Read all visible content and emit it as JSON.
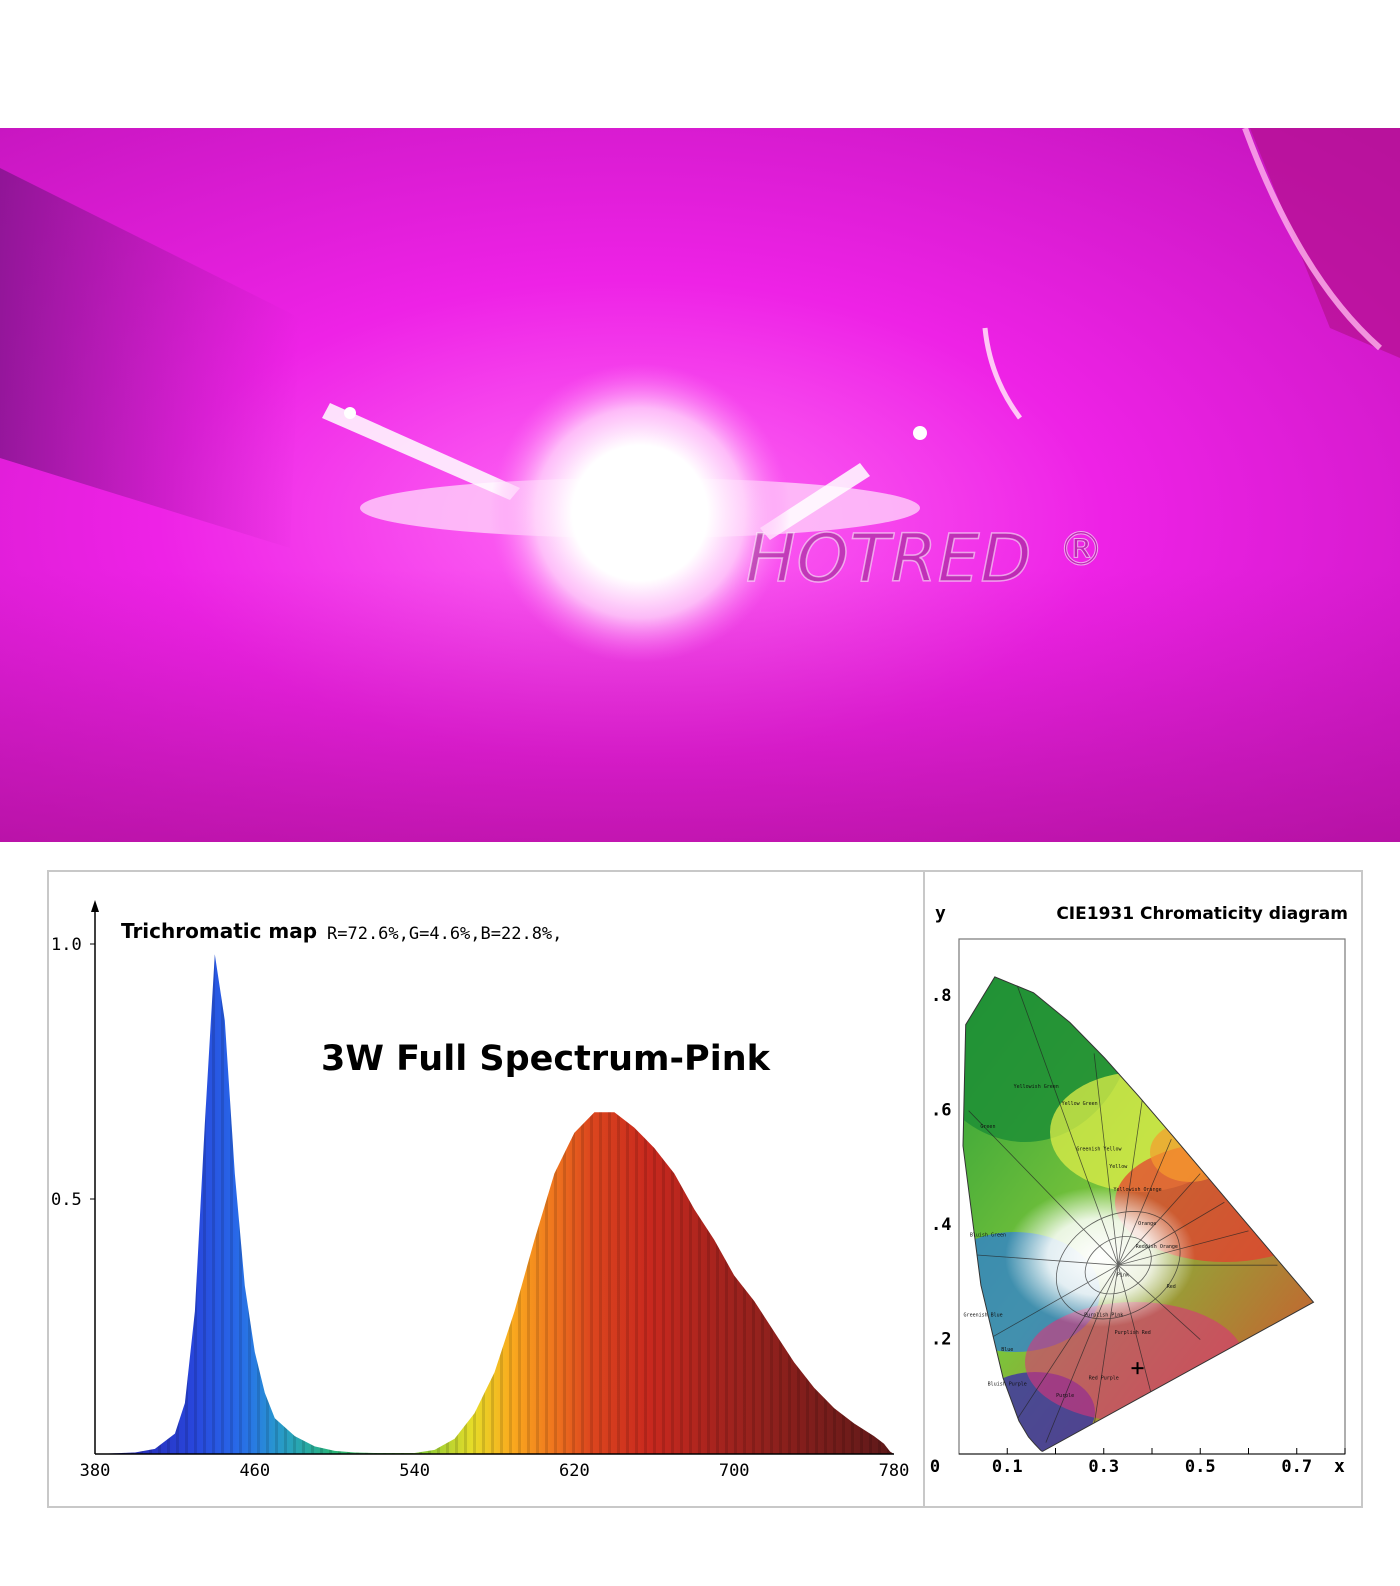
{
  "photo": {
    "brand": "HOTRED",
    "brand_mark": "®",
    "colors": {
      "base": "#e91fe0",
      "glow": "#ffffff",
      "shade": "#9a1a9a"
    }
  },
  "chart_data": [
    {
      "type": "area",
      "title": "3W Full Spectrum-Pink",
      "subtitle_label": "Trichromatic map",
      "subtitle_values": "R=72.6%,G=4.6%,B=22.8%,",
      "xlabel": "",
      "ylabel": "",
      "xlim": [
        380,
        780
      ],
      "ylim": [
        0,
        1.0
      ],
      "x_ticks": [
        "380",
        "460",
        "540",
        "620",
        "700",
        "780"
      ],
      "y_ticks": [
        {
          "value": 1.0,
          "label": "1.0"
        },
        {
          "value": 0.5,
          "label": "0.5"
        }
      ],
      "series": [
        {
          "x": [
            380,
            400,
            410,
            420,
            425,
            430,
            435,
            440,
            445,
            450,
            455,
            460,
            465,
            470,
            480,
            490,
            500,
            510,
            520,
            530,
            540,
            550,
            560,
            570,
            580,
            590,
            600,
            610,
            620,
            630,
            640,
            650,
            655,
            660,
            670,
            680,
            690,
            700,
            710,
            720,
            730,
            740,
            750,
            760,
            770,
            775,
            778,
            780
          ],
          "values": [
            0.0,
            0.003,
            0.01,
            0.04,
            0.1,
            0.28,
            0.65,
            0.98,
            0.85,
            0.55,
            0.33,
            0.2,
            0.12,
            0.07,
            0.035,
            0.015,
            0.006,
            0.003,
            0.002,
            0.002,
            0.002,
            0.008,
            0.03,
            0.08,
            0.16,
            0.28,
            0.42,
            0.55,
            0.63,
            0.67,
            0.67,
            0.64,
            0.62,
            0.6,
            0.55,
            0.48,
            0.42,
            0.35,
            0.3,
            0.24,
            0.18,
            0.13,
            0.09,
            0.06,
            0.035,
            0.02,
            0.005,
            0.0
          ]
        }
      ]
    },
    {
      "type": "scatter",
      "title": "CIE1931 Chromaticity diagram",
      "xlabel": "x",
      "ylabel": "y",
      "xlim": [
        0,
        0.8
      ],
      "ylim": [
        0,
        0.9
      ],
      "x_ticks": [
        "0",
        "0.1",
        "0.3",
        "0.5",
        "0.7"
      ],
      "y_ticks": [
        ".8",
        ".6",
        ".4",
        ".2"
      ],
      "locus": {
        "x": [
          0.1741,
          0.1738,
          0.1736,
          0.1733,
          0.1726,
          0.1714,
          0.1689,
          0.1644,
          0.1566,
          0.144,
          0.1241,
          0.0913,
          0.0454,
          0.0082,
          0.0139,
          0.0743,
          0.1547,
          0.2296,
          0.3016,
          0.3731,
          0.4441,
          0.5125,
          0.5752,
          0.627,
          0.6658,
          0.6915,
          0.7079,
          0.7347
        ],
        "y": [
          0.005,
          0.0049,
          0.0048,
          0.0048,
          0.0048,
          0.0051,
          0.0069,
          0.0109,
          0.0177,
          0.0297,
          0.0578,
          0.1327,
          0.295,
          0.5384,
          0.7502,
          0.8338,
          0.8059,
          0.7543,
          0.6923,
          0.6245,
          0.5547,
          0.4866,
          0.4242,
          0.3725,
          0.334,
          0.3083,
          0.292,
          0.2653
        ]
      },
      "regions": [
        "Green",
        "Yellowish Green",
        "Yellow Green",
        "Greenish Yellow",
        "Yellow",
        "Yellowish Orange",
        "Orange",
        "Reddish Orange",
        "Red",
        "Purplish Pink",
        "Pink",
        "Purplish Red",
        "Red Purple",
        "Purple",
        "Bluish Purple",
        "Blue",
        "Greenish Blue",
        "Bluish Green"
      ],
      "point": {
        "x": 0.37,
        "y": 0.15
      }
    }
  ]
}
